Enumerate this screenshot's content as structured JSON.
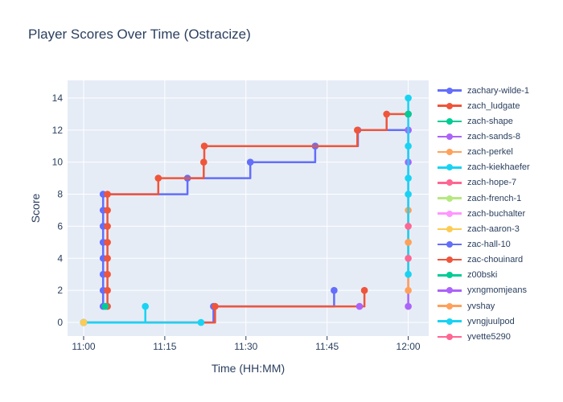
{
  "colors": {
    "paper_bg": "#FFFFFF",
    "plot_bg": "#E5ECF6",
    "grid": "#FFFFFF",
    "text": "#2A3F5F"
  },
  "chart_data": {
    "type": "line",
    "line_shape": "hv-step",
    "title": "Player Scores Over Time (Ostracize)",
    "xlabel": "Time (HH:MM)",
    "ylabel": "Score",
    "x_tick_labels": [
      "11:00",
      "11:15",
      "11:30",
      "11:45",
      "12:00"
    ],
    "x_tick_minutes": [
      0,
      15,
      30,
      45,
      60
    ],
    "y_ticks": [
      0,
      2,
      4,
      6,
      8,
      10,
      12,
      14
    ],
    "x_range_minutes": [
      -2.97,
      63.78
    ],
    "y_range": [
      -0.85,
      15.1
    ],
    "grid": true,
    "legend_position": "right",
    "series": [
      {
        "name": "zachary-wilde-1",
        "color": "#636EFA",
        "points": [
          [
            3.6,
            1
          ],
          [
            3.6,
            2
          ],
          [
            3.6,
            3
          ],
          [
            3.6,
            4
          ],
          [
            3.6,
            5
          ],
          [
            3.6,
            6
          ],
          [
            3.6,
            7
          ],
          [
            3.6,
            8
          ],
          [
            19.2,
            9
          ],
          [
            30.8,
            10
          ],
          [
            42.8,
            11
          ],
          [
            50.7,
            12
          ],
          [
            60,
            12
          ]
        ]
      },
      {
        "name": "zach_ludgate",
        "color": "#EF553B",
        "points": [
          [
            4.4,
            1
          ],
          [
            4.4,
            2
          ],
          [
            4.4,
            3
          ],
          [
            4.4,
            4
          ],
          [
            4.4,
            5
          ],
          [
            4.4,
            6
          ],
          [
            4.4,
            7
          ],
          [
            4.4,
            8
          ],
          [
            13.8,
            9
          ],
          [
            22.2,
            10
          ],
          [
            22.3,
            11
          ],
          [
            50.6,
            12
          ],
          [
            56,
            13
          ],
          [
            60,
            13
          ]
        ]
      },
      {
        "name": "zach-shape",
        "color": "#00CC96",
        "points": [
          [
            4.0,
            1
          ]
        ]
      },
      {
        "name": "zach-sands-8",
        "color": "#AB63FA",
        "points": [
          [
            60,
            1
          ],
          [
            60,
            10
          ],
          [
            60,
            12
          ]
        ]
      },
      {
        "name": "zach-perkel",
        "color": "#FFA15A",
        "points": [
          [
            60,
            2
          ],
          [
            60,
            7
          ]
        ]
      },
      {
        "name": "zach-kiekhaefer",
        "color": "#19D3F3",
        "points": [
          [
            0,
            0
          ],
          [
            21.7,
            0
          ],
          null,
          [
            60,
            3
          ],
          [
            60,
            8
          ],
          [
            60,
            9
          ],
          [
            60,
            11
          ],
          [
            60,
            14
          ]
        ]
      },
      {
        "name": "zach-hope-7",
        "color": "#FF6692",
        "points": [
          [
            60,
            6
          ]
        ]
      },
      {
        "name": "zach-french-1",
        "color": "#B6E880",
        "points": [
          [
            0,
            0
          ]
        ]
      },
      {
        "name": "zach-buchalter",
        "color": "#FF97FF",
        "points": [
          [
            0,
            0
          ]
        ]
      },
      {
        "name": "zach-aaron-3",
        "color": "#FECB52",
        "points": [
          [
            0,
            0
          ]
        ]
      },
      {
        "name": "zac-hall-10",
        "color": "#636EFA",
        "points": [
          [
            0,
            0
          ],
          [
            24.0,
            1
          ],
          [
            46.3,
            2
          ]
        ]
      },
      {
        "name": "zac-chouinard",
        "color": "#EF553B",
        "points": [
          [
            0,
            0
          ],
          [
            24.3,
            1
          ],
          [
            51.9,
            2
          ]
        ]
      },
      {
        "name": "z00bski",
        "color": "#00CC96",
        "points": [
          [
            60,
            13
          ]
        ]
      },
      {
        "name": "yxngmomjeans",
        "color": "#AB63FA",
        "points": [
          [
            51.0,
            1
          ]
        ]
      },
      {
        "name": "yvshay",
        "color": "#FFA15A",
        "points": [
          [
            60,
            5
          ]
        ]
      },
      {
        "name": "yvngjuulpod",
        "color": "#19D3F3",
        "points": [
          [
            0,
            0
          ],
          [
            11.4,
            1
          ]
        ]
      },
      {
        "name": "yvette5290",
        "color": "#FF6692",
        "points": [
          [
            60,
            4
          ]
        ]
      }
    ],
    "draw_order": [
      "zach-french-1",
      "zach-buchalter",
      "zachary-wilde-1",
      "zach_ludgate",
      "zach-shape",
      "zac-hall-10",
      "zac-chouinard",
      "yvngjuulpod",
      "zach-sands-8",
      "zach-perkel",
      "zach-kiekhaefer",
      "z00bski",
      "yxngmomjeans",
      "zach-hope-7",
      "yvshay",
      "yvette5290",
      "zach-aaron-3"
    ]
  }
}
